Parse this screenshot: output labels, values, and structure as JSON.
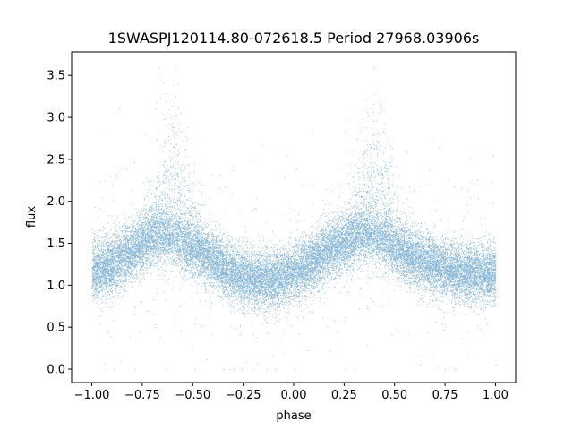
{
  "chart_data": {
    "type": "scatter",
    "title": "1SWASPJ120114.80-072618.5 Period 27968.03906s",
    "xlabel": "phase",
    "ylabel": "flux",
    "xlim": [
      -1.1,
      1.1
    ],
    "ylim": [
      -0.16,
      3.78
    ],
    "grid": false,
    "legend": "none",
    "marker_color": "#1f77b4",
    "x_ticks": [
      -1.0,
      -0.75,
      -0.5,
      -0.25,
      0.0,
      0.25,
      0.5,
      0.75,
      1.0
    ],
    "x_tick_labels": [
      "−1.00",
      "−0.75",
      "−0.50",
      "−0.25",
      "0.00",
      "0.25",
      "0.50",
      "0.75",
      "1.00"
    ],
    "y_ticks": [
      0.0,
      0.5,
      1.0,
      1.5,
      2.0,
      2.5,
      3.0,
      3.5
    ],
    "y_tick_labels": [
      "0.0",
      "0.5",
      "1.0",
      "1.5",
      "2.0",
      "2.5",
      "3.0",
      "3.5"
    ],
    "series": [
      {
        "phase": [
          -1.0,
          -0.95,
          -0.9,
          -0.85,
          -0.8,
          -0.75,
          -0.7,
          -0.65,
          -0.6,
          -0.55,
          -0.5,
          -0.45,
          -0.4,
          -0.35,
          -0.3,
          -0.25,
          -0.2,
          -0.15,
          -0.1,
          -0.05,
          0.0,
          0.05,
          0.1,
          0.15,
          0.2,
          0.25,
          0.3,
          0.35,
          0.4,
          0.45,
          0.5,
          0.55,
          0.6,
          0.65,
          0.7,
          0.75,
          0.8,
          0.85,
          0.9,
          0.95,
          1.0
        ],
        "median_flux": [
          1.15,
          1.2,
          1.25,
          1.33,
          1.42,
          1.5,
          1.57,
          1.6,
          1.58,
          1.52,
          1.45,
          1.38,
          1.3,
          1.22,
          1.15,
          1.1,
          1.08,
          1.07,
          1.07,
          1.1,
          1.15,
          1.22,
          1.3,
          1.38,
          1.45,
          1.52,
          1.57,
          1.6,
          1.58,
          1.52,
          1.45,
          1.38,
          1.32,
          1.28,
          1.24,
          1.2,
          1.17,
          1.15,
          1.14,
          1.14,
          1.15
        ],
        "flare_peak_phase": [
          -0.6,
          0.4
        ],
        "flare_max_flux": 3.6
      }
    ]
  }
}
